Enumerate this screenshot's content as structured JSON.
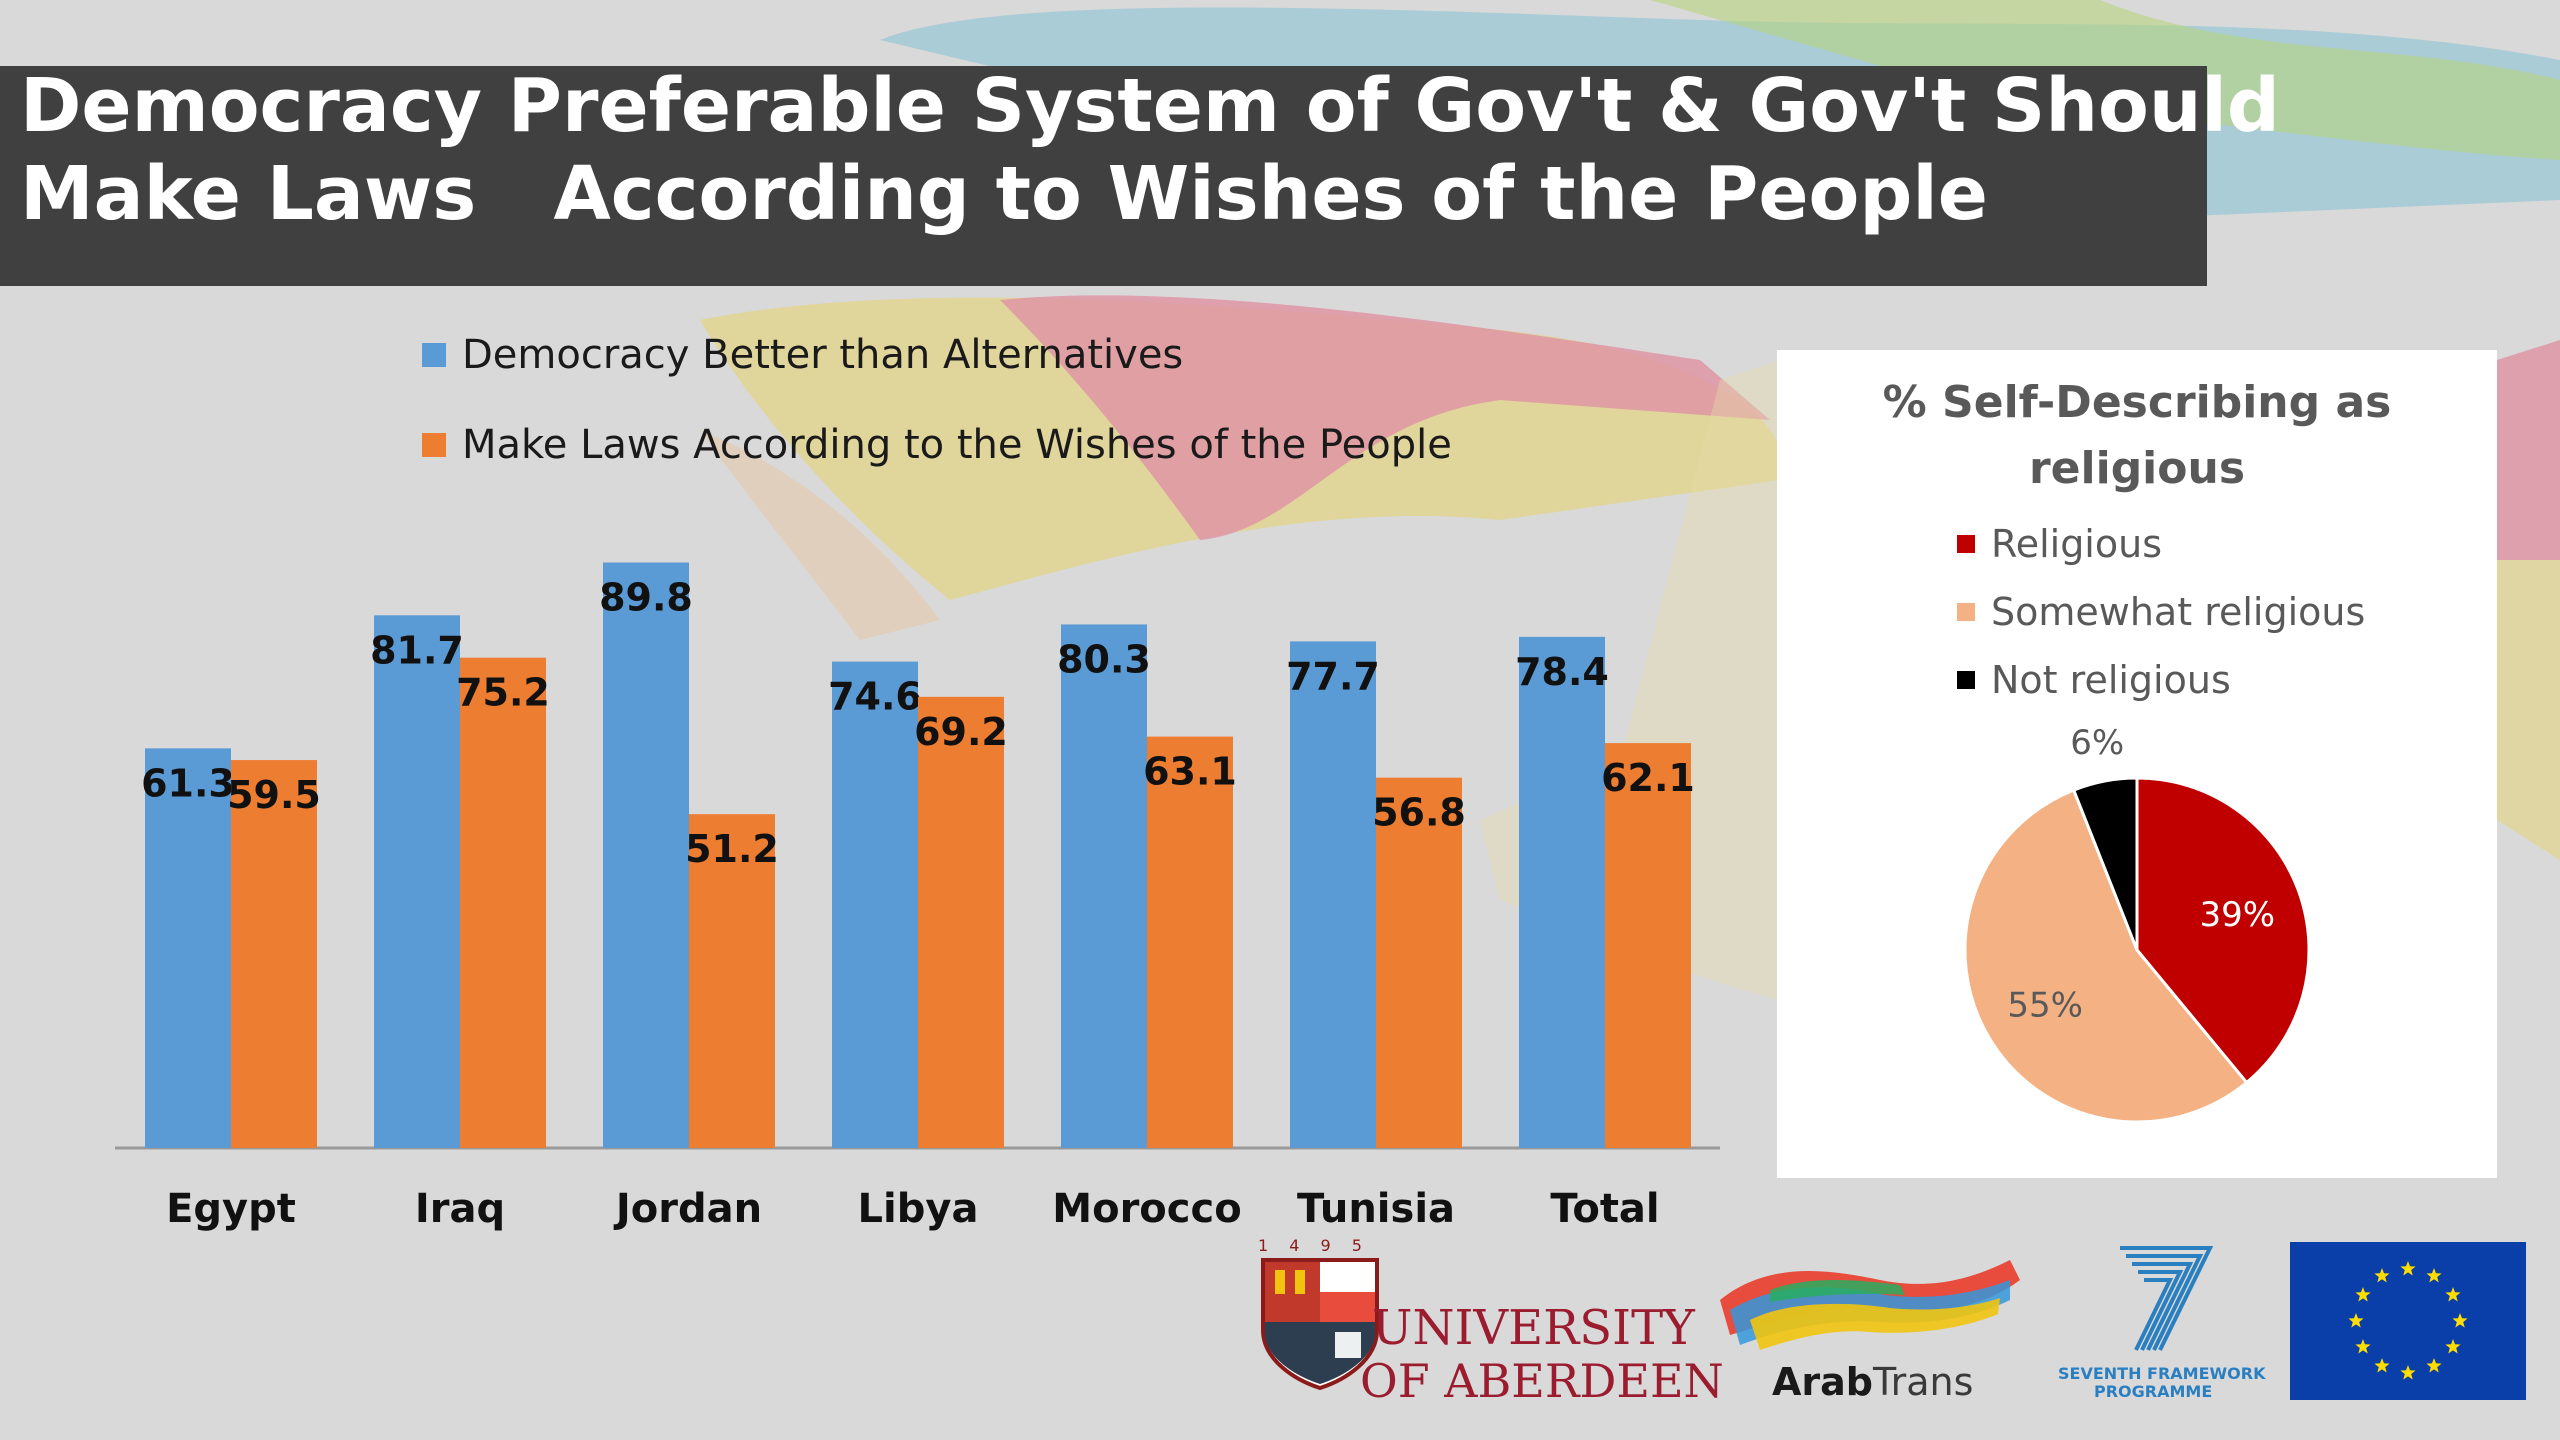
{
  "title": {
    "line1": "Democracy Preferable System of Gov't & Gov't Should",
    "line2": "Make Laws   According to Wishes of the People"
  },
  "colors": {
    "blue": "#5b9bd5",
    "orange": "#ed7d31",
    "religious": "#c00000",
    "somewhat": "#f4b183",
    "not_religious": "#000000",
    "title_bg": "#404040"
  },
  "chart_data": [
    {
      "type": "bar",
      "categories": [
        "Egypt",
        "Iraq",
        "Jordan",
        "Libya",
        "Morocco",
        "Tunisia",
        "Total"
      ],
      "series": [
        {
          "name": "Democracy Better than Alternatives",
          "values": [
            61.3,
            81.7,
            89.8,
            74.6,
            80.3,
            77.7,
            78.4
          ]
        },
        {
          "name": "Make Laws According to the Wishes of the People",
          "values": [
            59.5,
            75.2,
            51.2,
            69.2,
            63.1,
            56.8,
            62.1
          ]
        }
      ],
      "data_labels": true,
      "legend": "top-left",
      "grid": false
    },
    {
      "type": "pie",
      "title": "% Self-Describing as religious",
      "labels": [
        "Religious",
        "Somewhat religious",
        "Not religious"
      ],
      "values": [
        39,
        55,
        6
      ],
      "value_labels": [
        "39%",
        "55%",
        "6%"
      ],
      "legend": "top"
    }
  ],
  "logos": {
    "aberdeen_year": "1 4 9 5",
    "aberdeen_line1": "UNIVERSITY",
    "aberdeen_line2": "OF ABERDEEN",
    "arabtrans_bold": "Arab",
    "arabtrans_light": "Trans",
    "fp7_line1": "SEVENTH FRAMEWORK",
    "fp7_line2": "PROGRAMME"
  }
}
